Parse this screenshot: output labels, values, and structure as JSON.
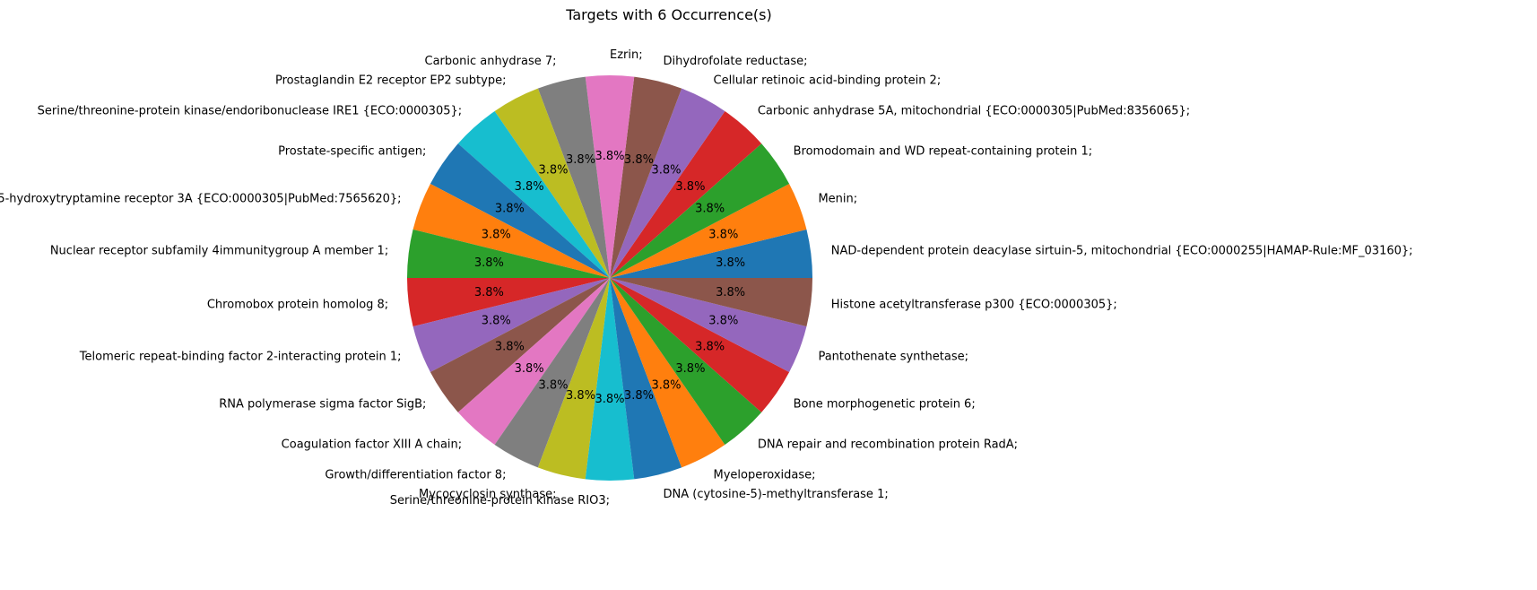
{
  "chart_data": {
    "type": "pie",
    "title": "Targets with 6 Occurrence(s)",
    "start_angle_deg": 0,
    "direction": "counterclockwise",
    "labels": [
      "NAD-dependent protein deacylase sirtuin-5, mitochondrial {ECO:0000255|HAMAP-Rule:MF_03160};",
      "Menin;",
      "Bromodomain and WD repeat-containing protein 1;",
      "Carbonic anhydrase 5A, mitochondrial {ECO:0000305|PubMed:8356065};",
      "Cellular retinoic acid-binding protein 2;",
      "Dihydrofolate reductase;",
      "Ezrin;",
      "Carbonic anhydrase 7;",
      "Prostaglandin E2 receptor EP2 subtype;",
      "Serine/threonine-protein kinase/endoribonuclease IRE1 {ECO:0000305};",
      "Prostate-specific antigen;",
      "5-hydroxytryptamine receptor 3A {ECO:0000305|PubMed:7565620};",
      "Nuclear receptor subfamily 4immunitygroup A member 1;",
      "Chromobox protein homolog 8;",
      "Telomeric repeat-binding factor 2-interacting protein 1;",
      "RNA polymerase sigma factor SigB;",
      "Coagulation factor XIII A chain;",
      "Growth/differentiation factor 8;",
      "Mycocyclosin synthase;",
      "Serine/threonine-protein kinase RIO3;",
      "DNA (cytosine-5)-methyltransferase 1;",
      "Myeloperoxidase;",
      "DNA repair and recombination protein RadA;",
      "Bone morphogenetic protein 6;",
      "Pantothenate synthetase;",
      "Histone acetyltransferase p300 {ECO:0000305};"
    ],
    "values": [
      6,
      6,
      6,
      6,
      6,
      6,
      6,
      6,
      6,
      6,
      6,
      6,
      6,
      6,
      6,
      6,
      6,
      6,
      6,
      6,
      6,
      6,
      6,
      6,
      6,
      6
    ],
    "percent_labels": [
      "3.8%",
      "3.8%",
      "3.8%",
      "3.8%",
      "3.8%",
      "3.8%",
      "3.8%",
      "3.8%",
      "3.8%",
      "3.8%",
      "3.8%",
      "3.8%",
      "3.8%",
      "3.8%",
      "3.8%",
      "3.8%",
      "3.8%",
      "3.8%",
      "3.8%",
      "3.8%",
      "3.8%",
      "3.8%",
      "3.8%",
      "3.8%",
      "3.8%",
      "3.8%"
    ],
    "colors": [
      "#1f77b4",
      "#ff7f0e",
      "#2ca02c",
      "#d62728",
      "#9467bd",
      "#8c564b",
      "#e377c2",
      "#7f7f7f",
      "#bcbd22",
      "#17becf"
    ],
    "legend": "none"
  }
}
